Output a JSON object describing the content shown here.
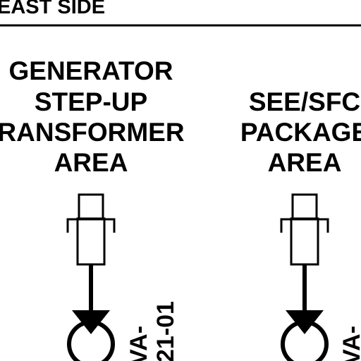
{
  "header": {
    "title": "EAST SIDE"
  },
  "areas": [
    {
      "label_lines": [
        "GENERATOR",
        "STEP-UP",
        "RANSFORMER",
        "AREA"
      ],
      "tag_lines": [
        "VA-",
        "21-01"
      ]
    },
    {
      "label_lines": [
        "SEE/SFC",
        "PACKAGE",
        "AREA"
      ],
      "tag_lines": [
        "VA-"
      ]
    }
  ]
}
